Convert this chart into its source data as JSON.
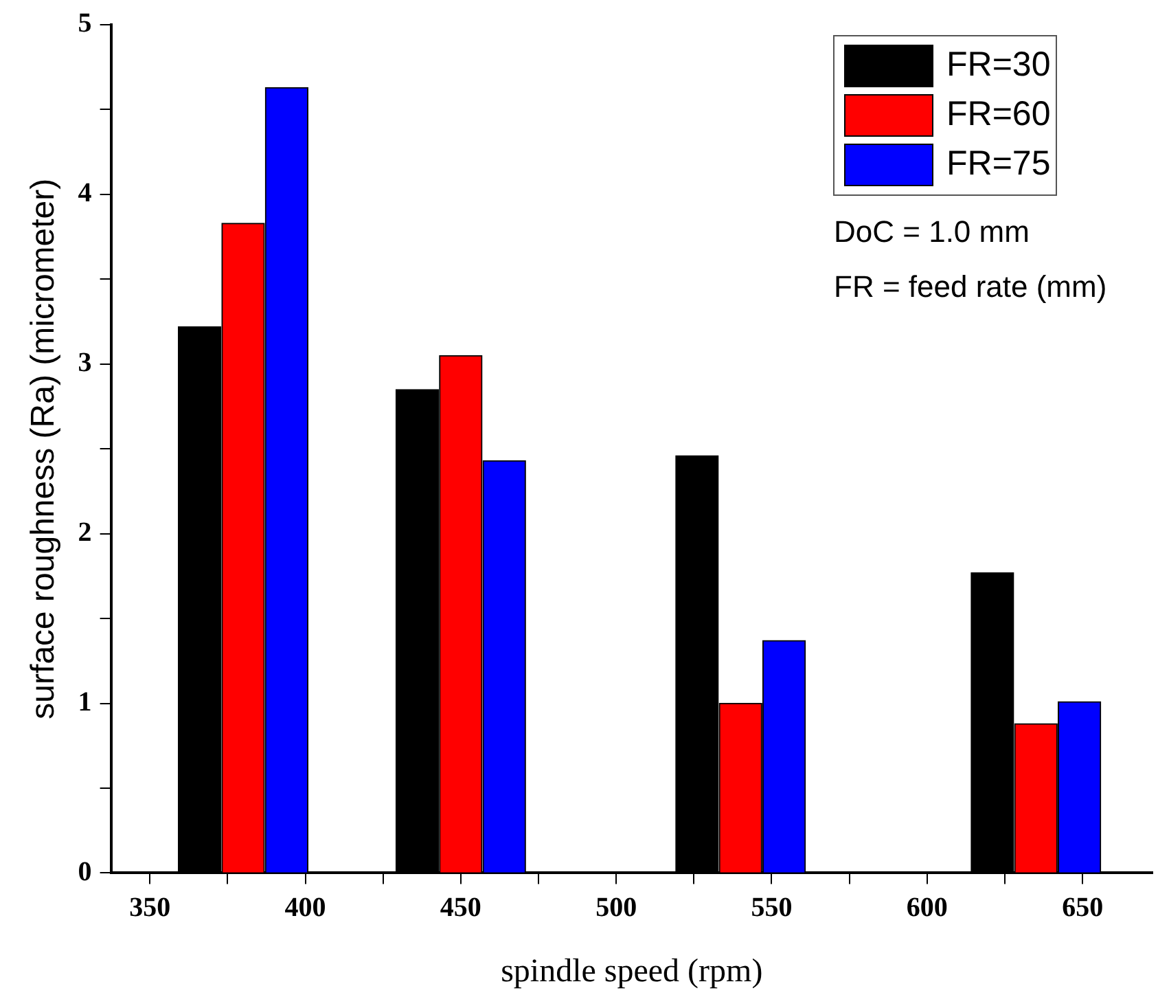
{
  "chart_data": {
    "type": "bar",
    "xlabel": "spindle speed (rpm)",
    "ylabel": "surface roughness (Ra) (micrometer)",
    "xlim": [
      337.5,
      672.5
    ],
    "xticks": [
      350,
      {
        "value": 375,
        "label": null
      },
      400,
      {
        "value": 425,
        "label": null
      },
      450,
      {
        "value": 475,
        "label": null
      },
      500,
      {
        "value": 525,
        "label": null
      },
      550,
      {
        "value": 575,
        "label": null
      },
      600,
      {
        "value": 625,
        "label": null
      },
      650
    ],
    "ylim": [
      0,
      5
    ],
    "yticks": [
      0,
      {
        "value": 0.5,
        "label": null
      },
      1,
      {
        "value": 1.5,
        "label": null
      },
      2,
      {
        "value": 2.5,
        "label": null
      },
      3,
      {
        "value": 3.5,
        "label": null
      },
      4,
      {
        "value": 4.5,
        "label": null
      },
      5
    ],
    "series": [
      {
        "name": "FR=30",
        "color": "#000000",
        "x": [
          366,
          436,
          526,
          621
        ],
        "values": [
          3.22,
          2.85,
          2.46,
          1.77
        ]
      },
      {
        "name": "FR=60",
        "color": "#ff0000",
        "x": [
          380,
          450,
          540,
          635
        ],
        "values": [
          3.83,
          3.05,
          1.0,
          0.88
        ]
      },
      {
        "name": "FR=75",
        "color": "#0000ff",
        "x": [
          394,
          464,
          554,
          649
        ],
        "values": [
          4.63,
          2.43,
          1.37,
          1.01
        ]
      }
    ],
    "annotations": [
      "DoC = 1.0 mm",
      "FR = feed rate (mm)"
    ],
    "legend": "top right",
    "grid": false
  }
}
